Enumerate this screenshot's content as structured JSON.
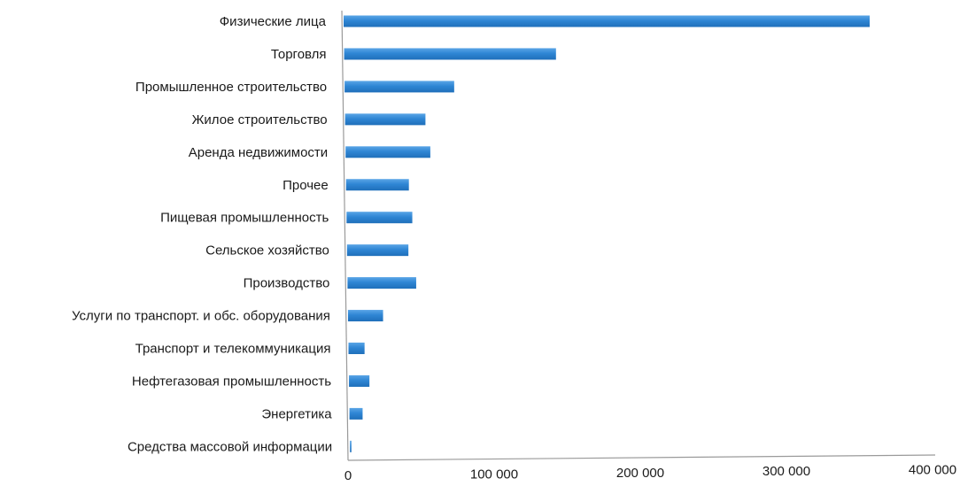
{
  "chart_data": {
    "type": "bar",
    "orientation": "horizontal",
    "categories": [
      "Физические лица",
      "Торговля",
      "Промышленное строительство",
      "Жилое строительство",
      "Аренда недвижимости",
      "Прочее",
      "Пищевая промышленность",
      "Сельское хозяйство",
      "Производство",
      "Услуги по транспорт. и обс. оборудования",
      "Транспорт и телекоммуникация",
      "Нефтегазовая промышленность",
      "Энергетика",
      "Средства массовой информации"
    ],
    "values": [
      360000,
      145000,
      75000,
      55000,
      58000,
      43000,
      45000,
      42000,
      47000,
      24000,
      11000,
      14000,
      9000,
      1000
    ],
    "xlim": [
      0,
      400000
    ],
    "xticks": [
      0,
      100000,
      200000,
      300000,
      400000
    ],
    "xtick_labels": [
      "0",
      "100 000",
      "200 000",
      "300 000",
      "400 000"
    ],
    "bar_color": "#2f86d4",
    "grid": false,
    "legend": "none"
  }
}
